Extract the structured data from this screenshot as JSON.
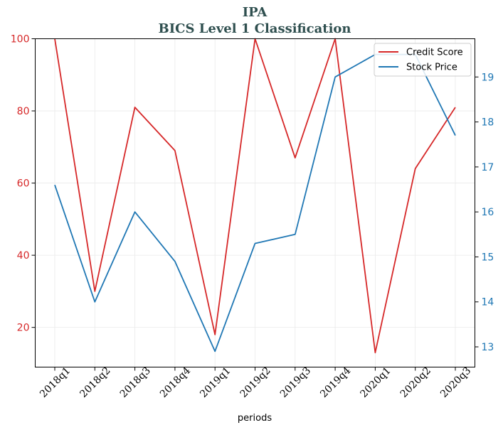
{
  "chart_data": {
    "type": "line",
    "title": "IPA",
    "subtitle": "BICS Level 1 Classification",
    "xlabel": "periods",
    "categories": [
      "2018q1",
      "2018q2",
      "2018q3",
      "2018q4",
      "2019q1",
      "2019q2",
      "2019q3",
      "2019q4",
      "2020q1",
      "2020q2",
      "2020q3"
    ],
    "y_left": {
      "min": 9,
      "max": 100,
      "ticks": [
        20,
        40,
        60,
        80,
        100
      ],
      "color": "#d62728"
    },
    "y_right": {
      "min": 12.55,
      "max": 19.85,
      "ticks": [
        13,
        14,
        15,
        16,
        17,
        18,
        19
      ],
      "color": "#1f77b4"
    },
    "grid": true,
    "legend_position": "top-right",
    "series": [
      {
        "name": "Credit Score",
        "axis": "left",
        "color": "#d62728",
        "values": [
          100,
          30,
          81,
          69,
          18,
          100,
          67,
          100,
          13,
          64,
          81
        ]
      },
      {
        "name": "Stock Price",
        "axis": "right",
        "color": "#1f77b4",
        "values": [
          16.6,
          14.0,
          16.0,
          14.9,
          12.9,
          15.3,
          15.5,
          19.0,
          19.5,
          19.5,
          17.7
        ]
      }
    ]
  }
}
